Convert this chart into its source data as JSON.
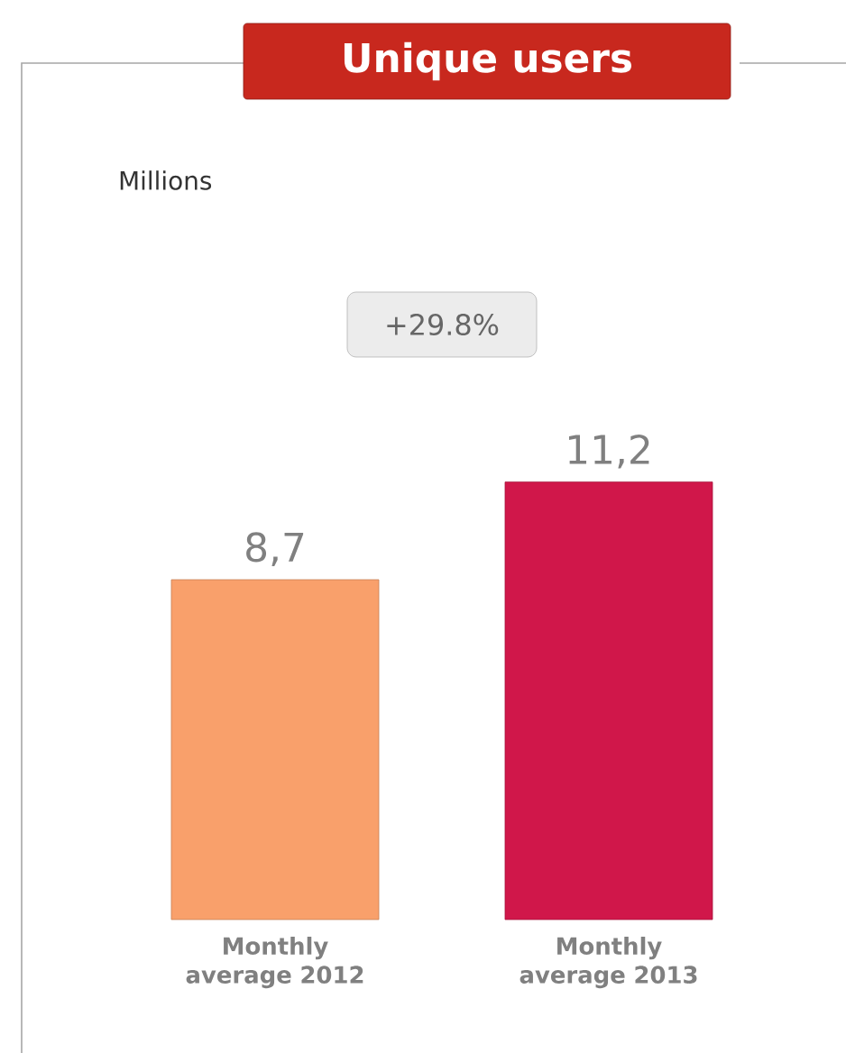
{
  "chart_data": {
    "type": "bar",
    "title": "Unique users",
    "annotations": [
      "+29.8%",
      "Millions"
    ],
    "categories": [
      "Monthly average 2012",
      "Monthly average 2013"
    ],
    "values": [
      8.7,
      11.2
    ],
    "colors": [
      "#f9a06b",
      "#d0174a"
    ],
    "value_labels": [
      "8,7",
      "11,2"
    ]
  }
}
